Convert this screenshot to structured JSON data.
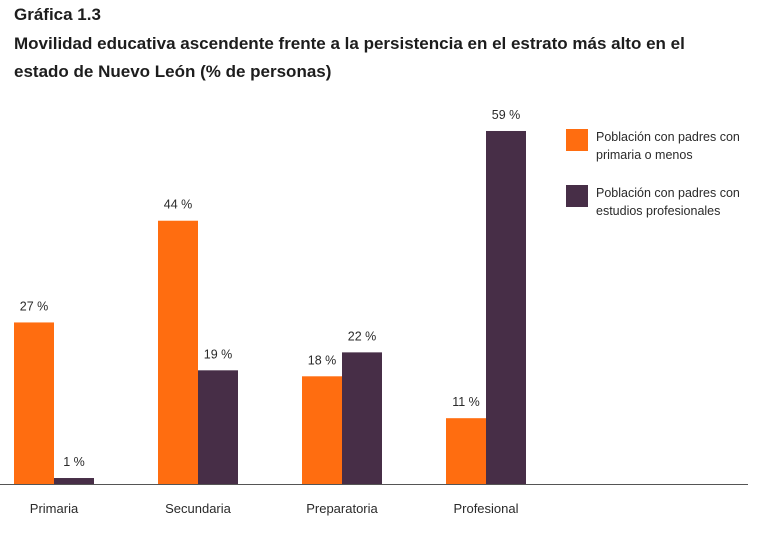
{
  "figure_label": "Gráfica 1.3",
  "chart_data": {
    "type": "bar",
    "title": "Movilidad educativa ascendente frente a la persistencia en el estrato más alto en el estado de Nuevo León (% de personas)",
    "categories": [
      "Primaria",
      "Secundaria",
      "Preparatoria",
      "Profesional"
    ],
    "series": [
      {
        "name": "Población con padres con primaria o menos",
        "values": [
          27,
          44,
          18,
          11
        ],
        "labels": [
          "27 %",
          "44 %",
          "18 %",
          "11 %"
        ],
        "color": "#ff6d10"
      },
      {
        "name": "Población con padres con estudios profesionales",
        "values": [
          1,
          19,
          22,
          59
        ],
        "labels": [
          "1 %",
          "19 %",
          "22 %",
          "59 %"
        ],
        "color": "#472e47"
      }
    ],
    "ylim": [
      0,
      60
    ],
    "grid": false,
    "legend_position": "top-right"
  }
}
